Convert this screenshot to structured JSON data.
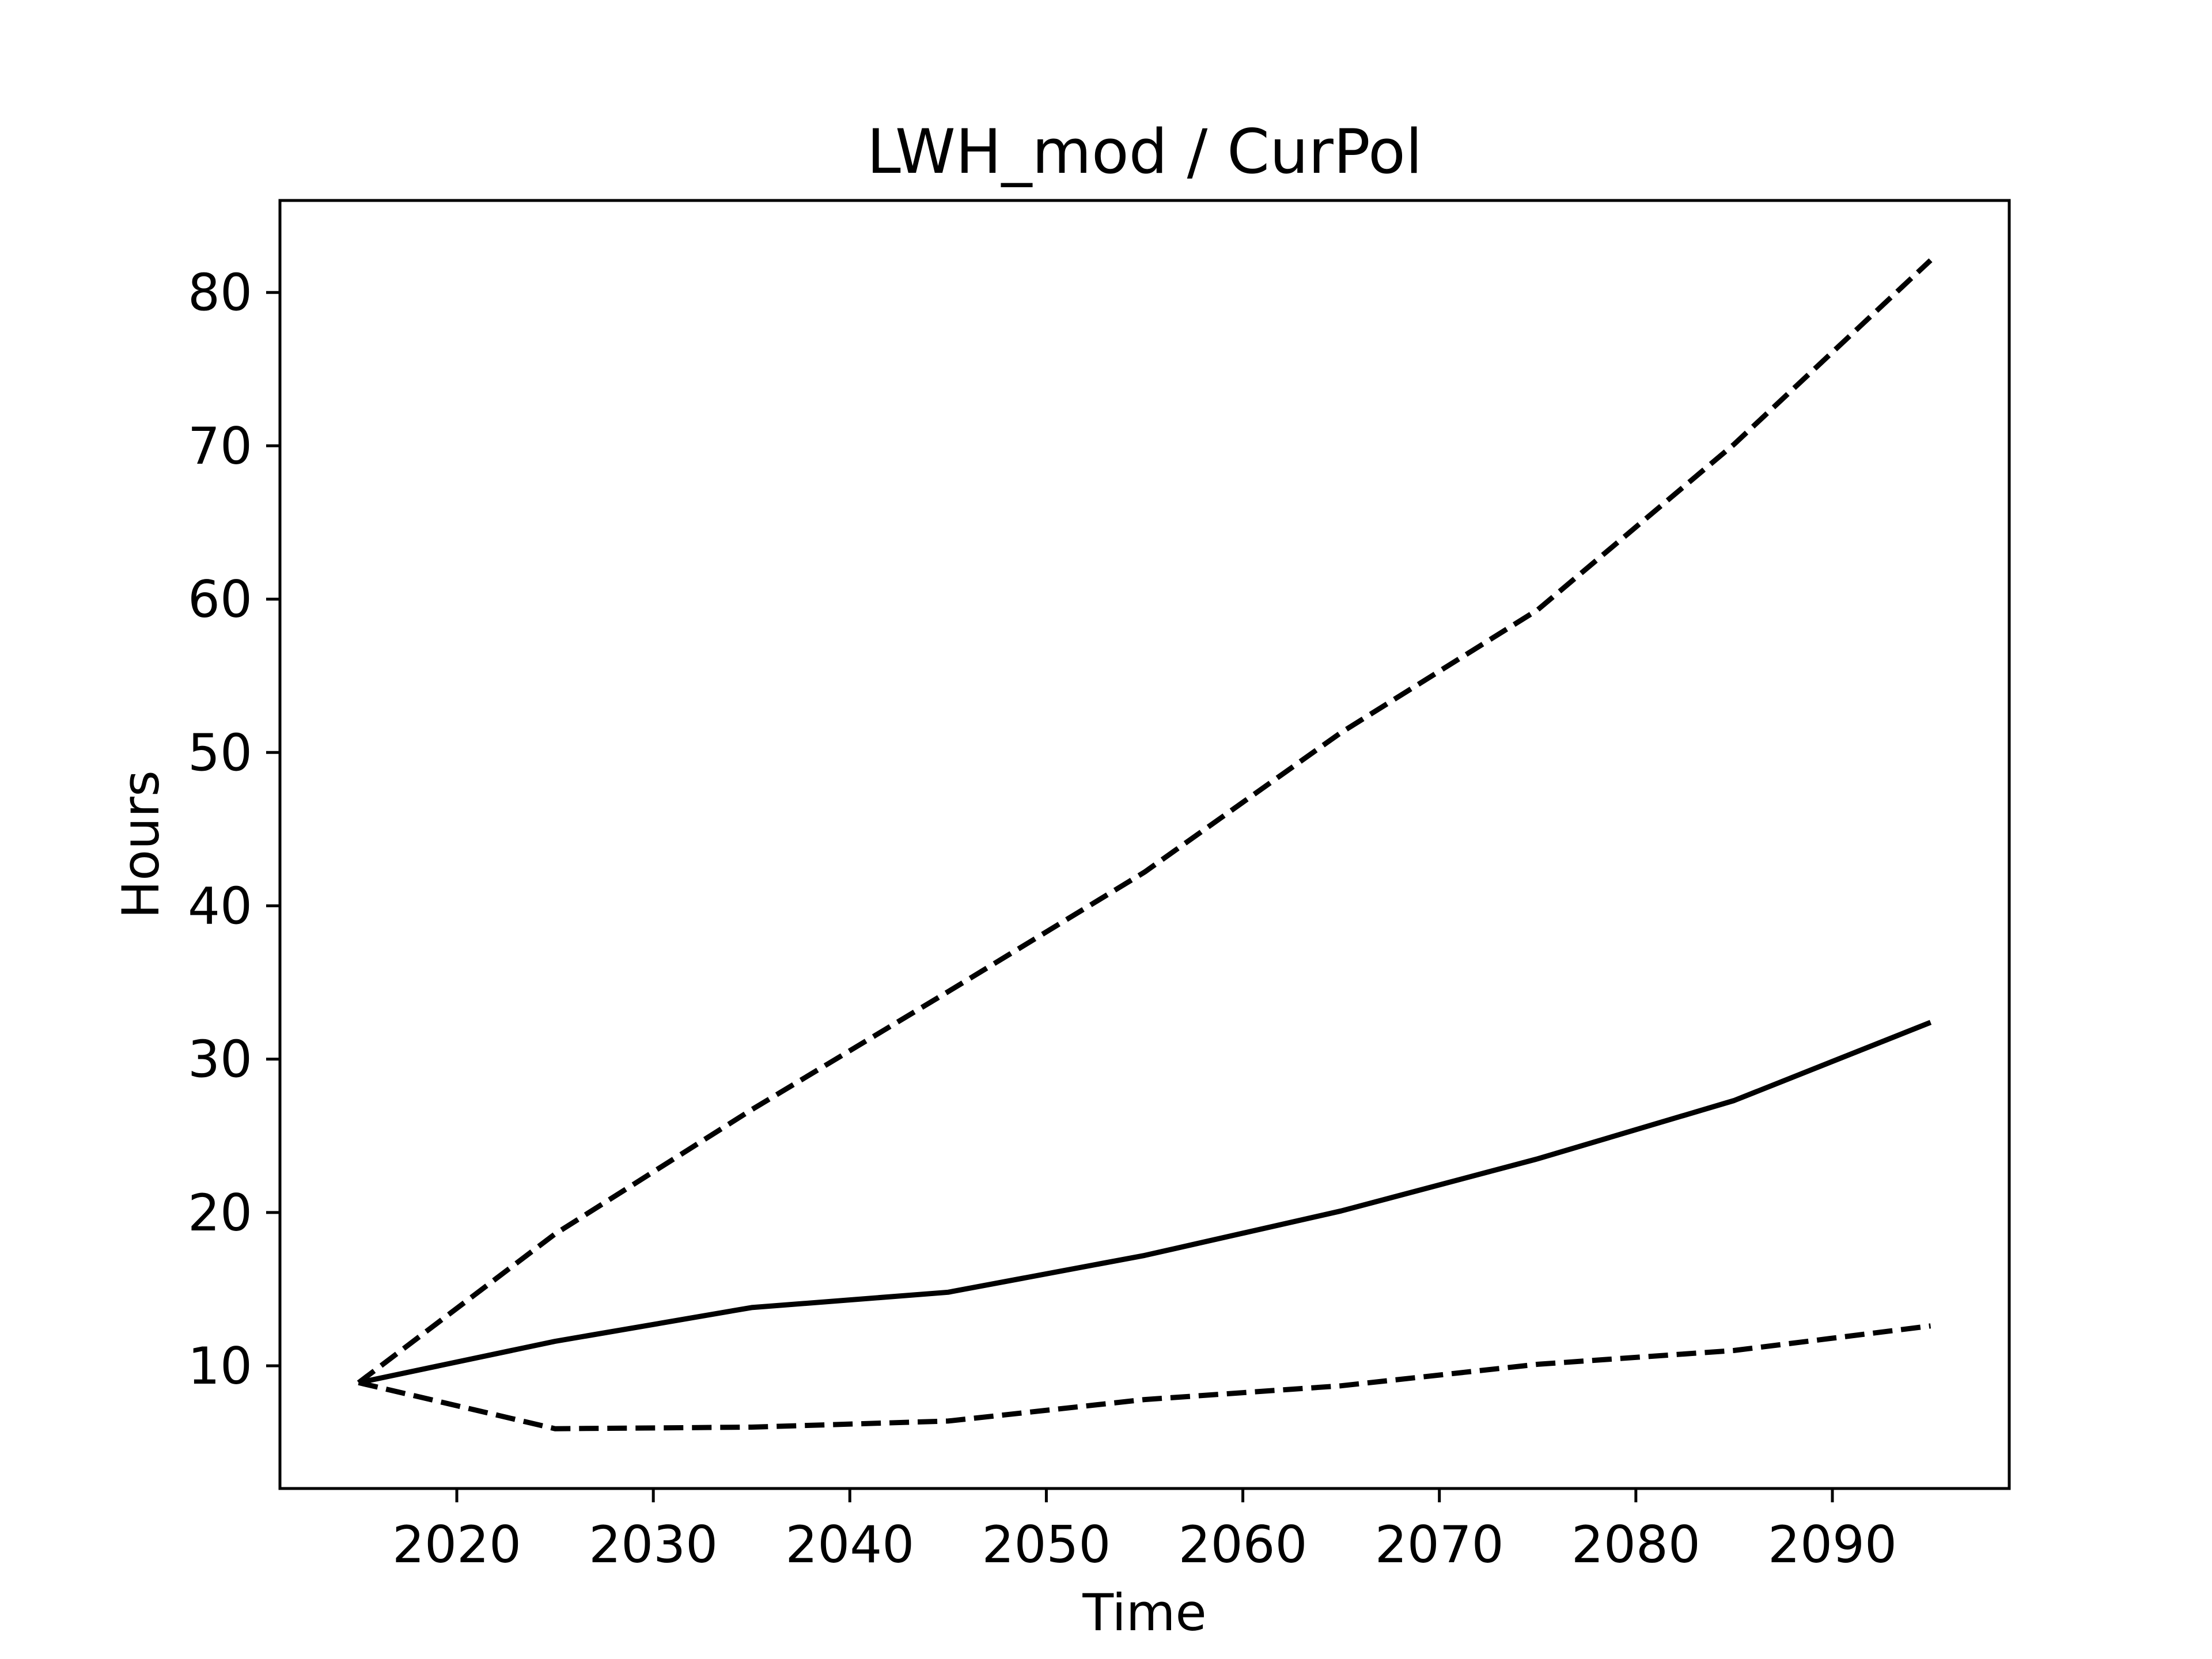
{
  "chart_data": {
    "type": "line",
    "title": "LWH_mod / CurPol",
    "xlabel": "Time",
    "ylabel": "Hours",
    "xlim": [
      2011,
      2099
    ],
    "ylim": [
      2,
      86
    ],
    "xticks": [
      2020,
      2030,
      2040,
      2050,
      2060,
      2070,
      2080,
      2090
    ],
    "yticks": [
      10,
      20,
      30,
      40,
      50,
      60,
      70,
      80
    ],
    "grid": false,
    "legend": "none",
    "x": [
      2015,
      2025,
      2035,
      2045,
      2055,
      2065,
      2075,
      2085,
      2095
    ],
    "series": [
      {
        "style": "solid",
        "color": "#000000",
        "values": [
          8.9,
          11.6,
          13.8,
          14.8,
          17.2,
          20.1,
          23.5,
          27.3,
          32.4
        ]
      },
      {
        "style": "dashed",
        "color": "#000000",
        "values": [
          8.9,
          18.6,
          26.7,
          34.4,
          42.2,
          51.3,
          59.3,
          70.1,
          82.1
        ]
      },
      {
        "style": "dashed",
        "color": "#000000",
        "values": [
          8.9,
          5.9,
          6.0,
          6.4,
          7.8,
          8.7,
          10.1,
          11.0,
          12.6
        ]
      }
    ]
  }
}
